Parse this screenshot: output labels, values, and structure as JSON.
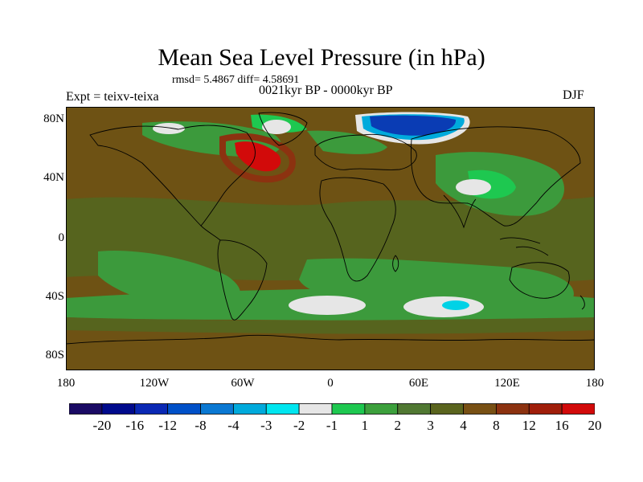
{
  "title": "Mean Sea Level Pressure (in hPa)",
  "stats": "rmsd= 5.4867 diff= 4.58691",
  "period": "0021kyr BP - 0000kyr BP",
  "experiment": "Expt = teixv-teixa",
  "season": "DJF",
  "lat_labels": [
    "80N",
    "40N",
    "0",
    "40S",
    "80S"
  ],
  "lon_labels": [
    "180",
    "120W",
    "60W",
    "0",
    "60E",
    "120E",
    "180"
  ],
  "colorbar": {
    "colors": [
      "#1a0a64",
      "#000a8c",
      "#0a28b4",
      "#0050c8",
      "#0a78d2",
      "#00aadc",
      "#00e6f0",
      "#e6e6e6",
      "#1ec850",
      "#3ca03c",
      "#507832",
      "#5a641e",
      "#785014",
      "#8c3210",
      "#a01e0a",
      "#d20a0a"
    ],
    "labels": [
      "-20",
      "-16",
      "-12",
      "-8",
      "-4",
      "-3",
      "-2",
      "-1",
      "1",
      "2",
      "3",
      "4",
      "8",
      "12",
      "16",
      "20"
    ]
  },
  "map_colors": {
    "base_brown": "#6e5214",
    "olive": "#56641e",
    "green": "#3c9a3c",
    "light_green": "#1ec850",
    "white": "#e6e6e6",
    "cyan": "#00d2e6",
    "blue": "#0a78d2",
    "dark_blue": "#0a3cb4",
    "red": "#d20a0a",
    "rust": "#8c3210"
  }
}
